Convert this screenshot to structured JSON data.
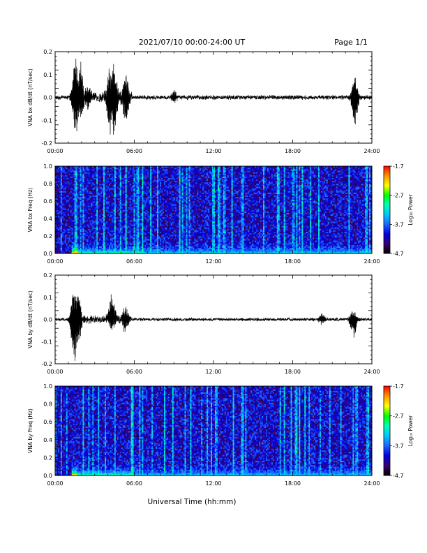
{
  "header": {
    "title": "2021/07/10  00:00-24:00 UT",
    "page": "Page 1/1"
  },
  "footer": {
    "xlabel": "Universal Time (hh:mm)"
  },
  "colors": {
    "trace": "#000000",
    "colormap": [
      "#000000",
      "#3a006e",
      "#0000e0",
      "#1e64ff",
      "#00c8ff",
      "#00ffb4",
      "#00ff00",
      "#ffff00",
      "#ff9600",
      "#ff0000"
    ]
  },
  "chart_data": [
    {
      "id": "bx-dbdt",
      "type": "line",
      "ylabel": "VNA bx dB/dt (nT/sec)",
      "xlim": [
        0,
        24
      ],
      "ylim": [
        -0.2,
        0.2
      ],
      "xticks": [
        "00:00",
        "06:00",
        "12:00",
        "18:00",
        "24:00"
      ],
      "yticks": [
        "0.2",
        "0.1",
        "0.0",
        "-0.1",
        "-0.2"
      ],
      "yticks_values": [
        0.2,
        0.1,
        0.0,
        -0.1,
        -0.2
      ],
      "noise_amplitude": 0.008,
      "events": [
        {
          "t": 1.55,
          "max": 0.18,
          "min": -0.17
        },
        {
          "t": 1.9,
          "max": 0.14,
          "min": -0.1
        },
        {
          "t": 2.5,
          "max": 0.06,
          "min": -0.05
        },
        {
          "t": 4.15,
          "max": 0.12,
          "min": -0.15
        },
        {
          "t": 4.45,
          "max": 0.15,
          "min": -0.17
        },
        {
          "t": 5.35,
          "max": 0.11,
          "min": -0.11
        },
        {
          "t": 9.0,
          "max": 0.03,
          "min": -0.02
        },
        {
          "t": 22.7,
          "max": 0.09,
          "min": -0.13
        }
      ]
    },
    {
      "id": "bx-freq",
      "type": "heatmap",
      "ylabel": "VNA bx Freq (Hz)",
      "colorbar_label": "Log₁₀ Power",
      "xlim": [
        0,
        24
      ],
      "ylim": [
        0,
        1.0
      ],
      "xticks": [
        "00:00",
        "06:00",
        "12:00",
        "18:00",
        "24:00"
      ],
      "yticks": [
        "1.0",
        "0.8",
        "0.6",
        "0.4",
        "0.2",
        "0.0"
      ],
      "yticks_values": [
        1.0,
        0.8,
        0.6,
        0.4,
        0.2,
        0.0
      ],
      "colorbar_range": [
        -4.7,
        -1.7
      ],
      "colorbar_ticks": [
        "-1.7",
        "-2.7",
        "-3.7",
        "-4.7"
      ],
      "colorbar_ticks_values": [
        -1.7,
        -2.7,
        -3.7,
        -4.7
      ],
      "low_freq_enhancement": [
        {
          "t_start": 1.3,
          "t_end": 1.8,
          "level": -1.9
        },
        {
          "t_start": 1.8,
          "t_end": 6.8,
          "level": -2.9
        },
        {
          "t_start": 6.8,
          "t_end": 24.0,
          "level": -3.2
        }
      ]
    },
    {
      "id": "by-dbdt",
      "type": "line",
      "ylabel": "VNA by dB/dt (nT/sec)",
      "xlim": [
        0,
        24
      ],
      "ylim": [
        -0.2,
        0.2
      ],
      "xticks": [
        "00:00",
        "06:00",
        "12:00",
        "18:00",
        "24:00"
      ],
      "yticks": [
        "0.2",
        "0.1",
        "0.0",
        "-0.1",
        "-0.2"
      ],
      "yticks_values": [
        0.2,
        0.1,
        0.0,
        -0.1,
        -0.2
      ],
      "noise_amplitude": 0.006,
      "events": [
        {
          "t": 1.45,
          "max": 0.15,
          "min": -0.19
        },
        {
          "t": 1.75,
          "max": 0.12,
          "min": -0.1
        },
        {
          "t": 4.3,
          "max": 0.11,
          "min": -0.04
        },
        {
          "t": 5.3,
          "max": 0.06,
          "min": -0.05
        },
        {
          "t": 20.2,
          "max": 0.03,
          "min": -0.02
        },
        {
          "t": 22.6,
          "max": 0.04,
          "min": -0.08
        }
      ]
    },
    {
      "id": "by-freq",
      "type": "heatmap",
      "ylabel": "VNA by Freq (Hz)",
      "colorbar_label": "Log₁₀ Power",
      "xlim": [
        0,
        24
      ],
      "ylim": [
        0,
        1.0
      ],
      "xticks": [
        "00:00",
        "06:00",
        "12:00",
        "18:00",
        "24:00"
      ],
      "yticks": [
        "1.0",
        "0.8",
        "0.6",
        "0.4",
        "0.2",
        "0.0"
      ],
      "yticks_values": [
        1.0,
        0.8,
        0.6,
        0.4,
        0.2,
        0.0
      ],
      "colorbar_range": [
        -4.7,
        -1.7
      ],
      "colorbar_ticks": [
        "-1.7",
        "-2.7",
        "-3.7",
        "-4.7"
      ],
      "colorbar_ticks_values": [
        -1.7,
        -2.7,
        -3.7,
        -4.7
      ],
      "low_freq_enhancement": [
        {
          "t_start": 1.3,
          "t_end": 1.7,
          "level": -2.0
        },
        {
          "t_start": 1.7,
          "t_end": 6.0,
          "level": -2.9
        },
        {
          "t_start": 6.0,
          "t_end": 24.0,
          "level": -3.3
        }
      ]
    }
  ]
}
